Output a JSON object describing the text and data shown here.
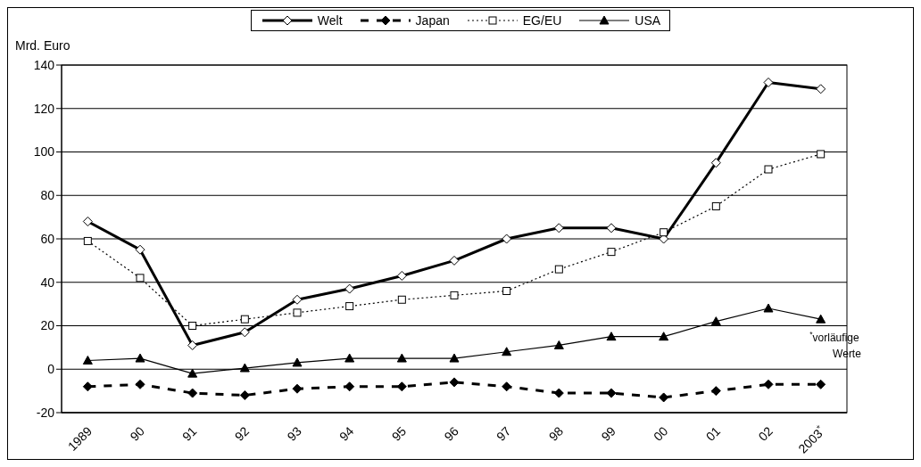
{
  "chart_data": {
    "type": "line",
    "ylabel": "Mrd. Euro",
    "categories": [
      "1989",
      "90",
      "91",
      "92",
      "93",
      "94",
      "95",
      "96",
      "97",
      "98",
      "99",
      "00",
      "01",
      "02",
      "2003$^{*}$"
    ],
    "series": [
      {
        "name": "Welt",
        "color": "#000000",
        "marker": "diamond",
        "line_style": "solid",
        "values": [
          68,
          55,
          11,
          17,
          32,
          37,
          43,
          50,
          60,
          65,
          65,
          60,
          95,
          132,
          129
        ]
      },
      {
        "name": "Japan",
        "color": "#000000",
        "marker": "diamond",
        "line_style": "dashed",
        "values": [
          -8,
          -7,
          -11,
          -12,
          -9,
          -8,
          -8,
          -6,
          -8,
          -11,
          -11,
          -13,
          -10,
          -7,
          -7
        ]
      },
      {
        "name": "EG/EU",
        "color": "#000000",
        "marker": "square",
        "line_style": "dotted",
        "values": [
          59,
          42,
          20,
          23,
          26,
          29,
          32,
          34,
          36,
          46,
          54,
          63,
          75,
          92,
          99
        ]
      },
      {
        "name": "USA",
        "color": "#000000",
        "marker": "triangle",
        "line_style": "solid",
        "values": [
          4,
          5,
          -2,
          0.5,
          3,
          5,
          5,
          5,
          8,
          11,
          15,
          15,
          22,
          28,
          23
        ]
      }
    ],
    "ylim": [
      -20,
      140
    ],
    "yticks": [
      -20,
      0,
      20,
      40,
      60,
      80,
      100,
      120,
      140
    ],
    "grid": "y",
    "legend": "top",
    "annotations": [
      "$^{*}$vorläufige Werte"
    ]
  }
}
